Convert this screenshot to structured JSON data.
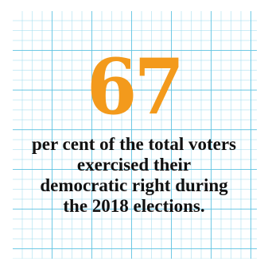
{
  "stat": {
    "number": "67",
    "caption": "per cent of the total voters exercised their democratic right during the 2018 elections."
  },
  "colors": {
    "accent": "#f39a1c",
    "text": "#111111",
    "grid_line": "#5fc3e1",
    "background": "#ffffff"
  }
}
